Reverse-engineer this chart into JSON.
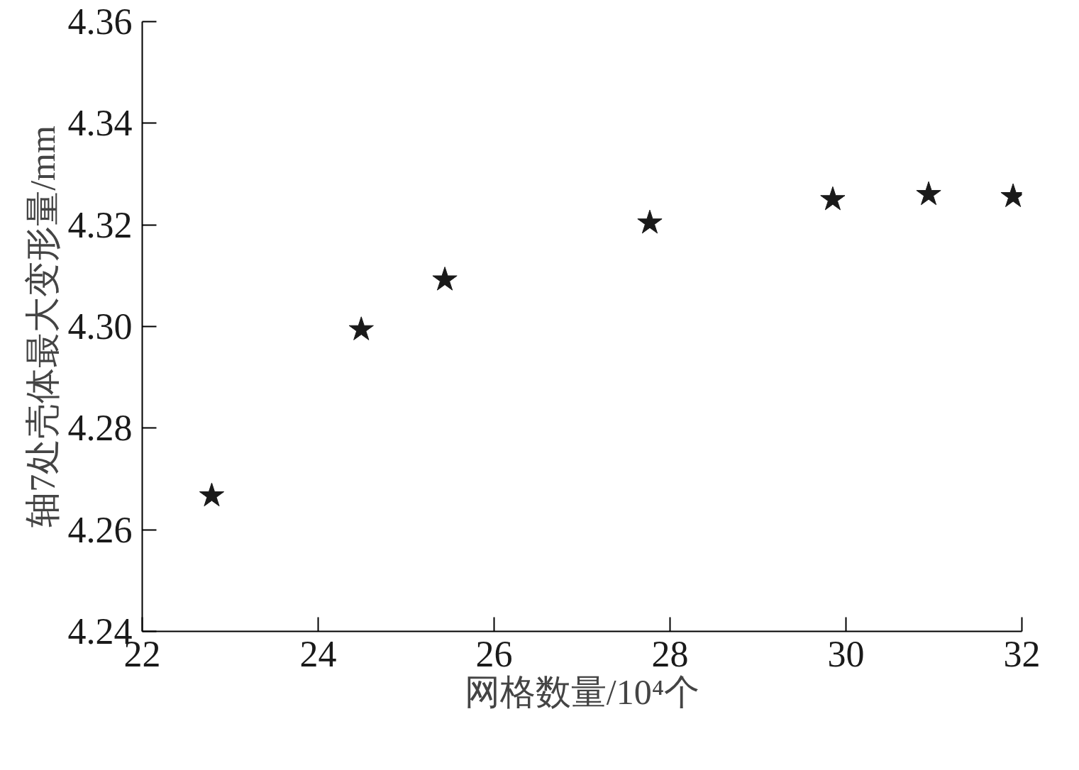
{
  "chart_data": {
    "type": "scatter",
    "xlabel": "网格数量/10⁴个",
    "ylabel": "轴7处壳体最大变形量/mm",
    "x": [
      22.79,
      24.49,
      25.44,
      27.77,
      29.85,
      30.94,
      31.9
    ],
    "series": [
      {
        "color": "#1a1a1a",
        "values": [
          4.2667,
          4.2994,
          4.3092,
          4.3204,
          4.325,
          4.326,
          4.3256
        ]
      }
    ],
    "xlim": [
      22,
      32
    ],
    "xticks": [
      22,
      24,
      26,
      28,
      30,
      32
    ],
    "ylim": [
      4.24,
      4.36
    ],
    "yticks": [
      {
        "value": 4.24,
        "label": "4.24"
      },
      {
        "value": 4.26,
        "label": "4.26"
      },
      {
        "value": 4.28,
        "label": "4.28"
      },
      {
        "value": 4.3,
        "label": "4.30"
      },
      {
        "value": 4.32,
        "label": "4.32"
      },
      {
        "value": 4.34,
        "label": "4.34"
      },
      {
        "value": 4.36,
        "label": "4.36"
      }
    ],
    "marker": "star",
    "grid": false
  }
}
